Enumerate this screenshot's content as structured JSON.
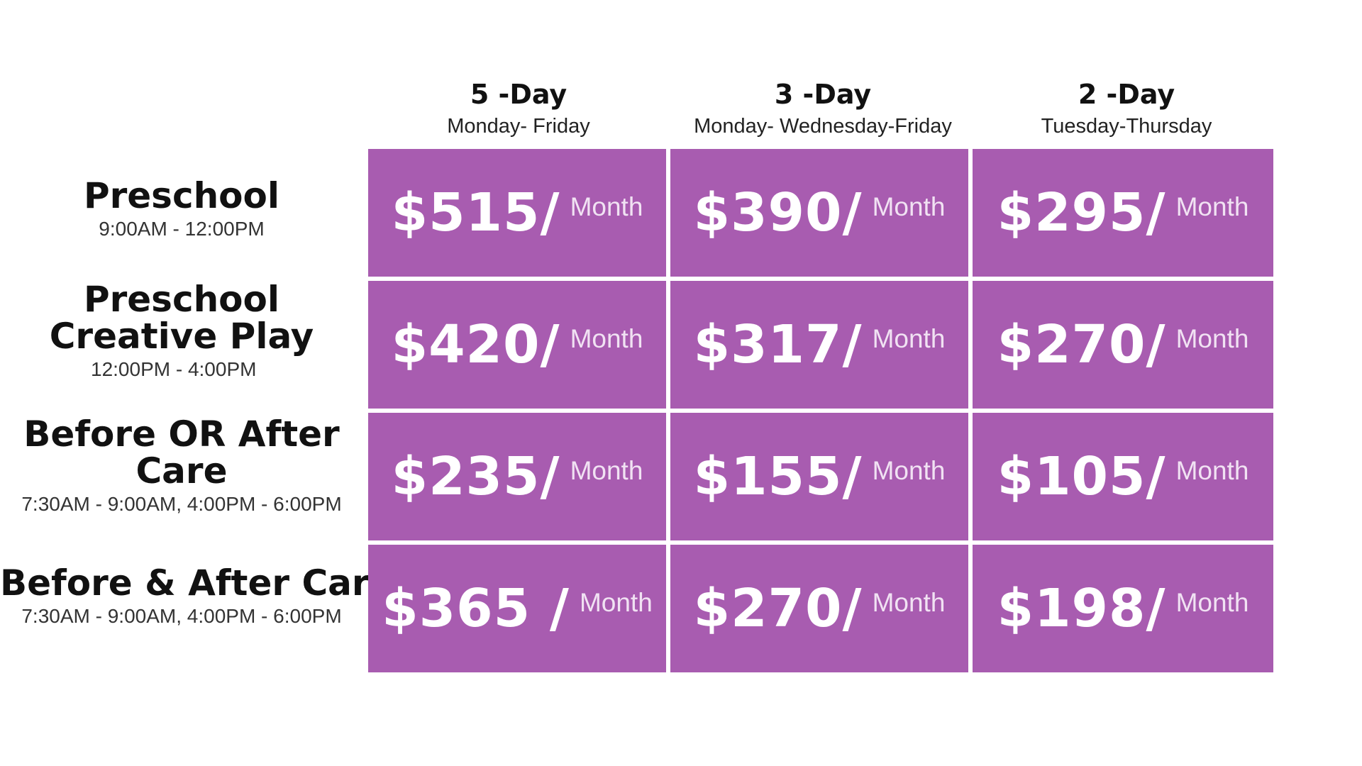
{
  "colors": {
    "cell_background": "#a85cb0",
    "price_text": "#ffffff",
    "page_background": "#ffffff"
  },
  "columns": [
    {
      "title": "5 -Day",
      "days": "Monday- Friday"
    },
    {
      "title": "3 -Day",
      "days": "Monday- Wednesday-Friday"
    },
    {
      "title": "2 -Day",
      "days": "Tuesday-Thursday"
    }
  ],
  "rows": [
    {
      "title": "Preschool",
      "time": "9:00AM - 12:00PM",
      "prices": [
        "$515/",
        "$390/",
        "$295/"
      ]
    },
    {
      "title": "Preschool Creative Play",
      "time": "12:00PM - 4:00PM",
      "prices": [
        "$420/",
        "$317/",
        "$270/"
      ]
    },
    {
      "title": "Before OR After Care",
      "time": "7:30AM - 9:00AM, 4:00PM - 6:00PM",
      "prices": [
        "$235/",
        "$155/",
        "$105/"
      ]
    },
    {
      "title": "Before & After Care",
      "time": "7:30AM - 9:00AM, 4:00PM - 6:00PM",
      "prices": [
        "$365 /",
        "$270/",
        "$198/"
      ]
    }
  ],
  "unit_label": "Month"
}
